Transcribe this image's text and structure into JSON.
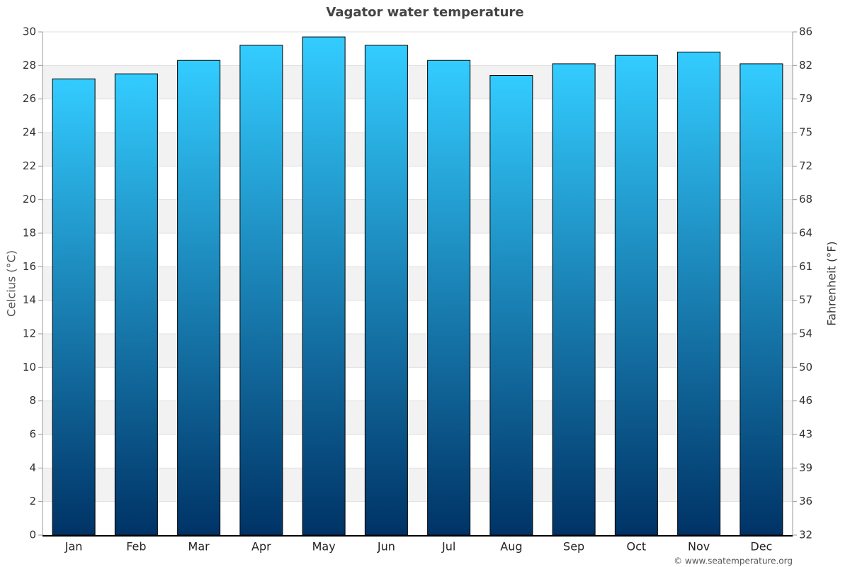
{
  "chart_data": {
    "type": "bar",
    "title": "Vagator water temperature",
    "y_label": "Celcius (°C)",
    "y2_label": "Fahrenheit (°F)",
    "credit": "© www.seatemperature.org",
    "categories": [
      "Jan",
      "Feb",
      "Mar",
      "Apr",
      "May",
      "Jun",
      "Jul",
      "Aug",
      "Sep",
      "Oct",
      "Nov",
      "Dec"
    ],
    "values": [
      27.2,
      27.5,
      28.3,
      29.2,
      29.7,
      29.2,
      28.3,
      27.4,
      28.1,
      28.6,
      28.8,
      28.1
    ],
    "color": [
      "#33ccff",
      "#003366"
    ],
    "ylim": [
      0,
      30
    ],
    "yticks": [
      0,
      2,
      4,
      6,
      8,
      10,
      12,
      14,
      16,
      18,
      20,
      22,
      24,
      26,
      28,
      30
    ],
    "y2lim": [
      32,
      86
    ],
    "y2ticks": [
      32,
      {
        "value": 35.6,
        "label": "36"
      },
      {
        "value": 39.2,
        "label": "39"
      },
      {
        "value": 42.8,
        "label": "43"
      },
      {
        "value": 46.4,
        "label": "46"
      },
      50,
      {
        "value": 53.6,
        "label": "54"
      },
      {
        "value": 57.2,
        "label": "57"
      },
      {
        "value": 60.8,
        "label": "61"
      },
      {
        "value": 64.4,
        "label": "64"
      },
      68,
      {
        "value": 71.6,
        "label": "72"
      },
      {
        "value": 75.2,
        "label": "75"
      },
      {
        "value": 78.8,
        "label": "79"
      },
      {
        "value": 82.4,
        "label": "82"
      },
      86
    ],
    "grid": true
  }
}
